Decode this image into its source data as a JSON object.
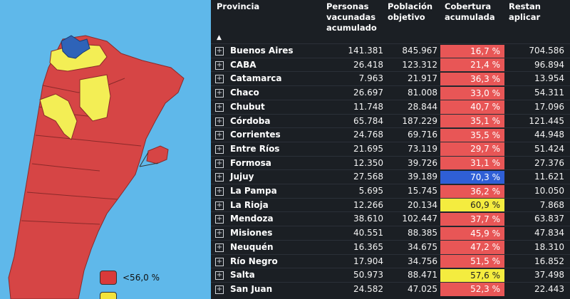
{
  "legend": [
    {
      "label": "<56,0 %",
      "color": "#d93a3a"
    },
    {
      "label": "",
      "color": "#f2e33b"
    }
  ],
  "map": {
    "colors": {
      "low": "#d64545",
      "mid": "#f3ee55",
      "high": "#2e63b8",
      "water": "#5fb8ea"
    }
  },
  "table": {
    "headers": {
      "provincia": "Provincia",
      "personas": [
        "Personas",
        "vacunadas",
        "acumulado"
      ],
      "poblacion": [
        "Población",
        "objetivo"
      ],
      "cobertura": [
        "Cobertura",
        "acumulada"
      ],
      "restan": [
        "Restan",
        "aplicar"
      ]
    },
    "rows": [
      {
        "name": "Buenos Aires",
        "vacunadas": "141.381",
        "objetivo": "845.967",
        "cobertura": "16,7 %",
        "restan": "704.586",
        "color": "#e85656"
      },
      {
        "name": "CABA",
        "vacunadas": "26.418",
        "objetivo": "123.312",
        "cobertura": "21,4 %",
        "restan": "96.894",
        "color": "#e85656"
      },
      {
        "name": "Catamarca",
        "vacunadas": "7.963",
        "objetivo": "21.917",
        "cobertura": "36,3 %",
        "restan": "13.954",
        "color": "#e85656"
      },
      {
        "name": "Chaco",
        "vacunadas": "26.697",
        "objetivo": "81.008",
        "cobertura": "33,0 %",
        "restan": "54.311",
        "color": "#e85656"
      },
      {
        "name": "Chubut",
        "vacunadas": "11.748",
        "objetivo": "28.844",
        "cobertura": "40,7 %",
        "restan": "17.096",
        "color": "#e85656"
      },
      {
        "name": "Córdoba",
        "vacunadas": "65.784",
        "objetivo": "187.229",
        "cobertura": "35,1 %",
        "restan": "121.445",
        "color": "#e85656"
      },
      {
        "name": "Corrientes",
        "vacunadas": "24.768",
        "objetivo": "69.716",
        "cobertura": "35,5 %",
        "restan": "44.948",
        "color": "#e85656"
      },
      {
        "name": "Entre Ríos",
        "vacunadas": "21.695",
        "objetivo": "73.119",
        "cobertura": "29,7 %",
        "restan": "51.424",
        "color": "#e85656"
      },
      {
        "name": "Formosa",
        "vacunadas": "12.350",
        "objetivo": "39.726",
        "cobertura": "31,1 %",
        "restan": "27.376",
        "color": "#e85656"
      },
      {
        "name": "Jujuy",
        "vacunadas": "27.568",
        "objetivo": "39.189",
        "cobertura": "70,3 %",
        "restan": "11.621",
        "color": "#2f5fd6"
      },
      {
        "name": "La Pampa",
        "vacunadas": "5.695",
        "objetivo": "15.745",
        "cobertura": "36,2 %",
        "restan": "10.050",
        "color": "#e85656"
      },
      {
        "name": "La Rioja",
        "vacunadas": "12.266",
        "objetivo": "20.134",
        "cobertura": "60,9 %",
        "restan": "7.868",
        "color": "#f4ec3f"
      },
      {
        "name": "Mendoza",
        "vacunadas": "38.610",
        "objetivo": "102.447",
        "cobertura": "37,7 %",
        "restan": "63.837",
        "color": "#e85656"
      },
      {
        "name": "Misiones",
        "vacunadas": "40.551",
        "objetivo": "88.385",
        "cobertura": "45,9 %",
        "restan": "47.834",
        "color": "#e85656"
      },
      {
        "name": "Neuquén",
        "vacunadas": "16.365",
        "objetivo": "34.675",
        "cobertura": "47,2 %",
        "restan": "18.310",
        "color": "#e85656"
      },
      {
        "name": "Río Negro",
        "vacunadas": "17.904",
        "objetivo": "34.756",
        "cobertura": "51,5 %",
        "restan": "16.852",
        "color": "#e85656"
      },
      {
        "name": "Salta",
        "vacunadas": "50.973",
        "objetivo": "88.471",
        "cobertura": "57,6 %",
        "restan": "37.498",
        "color": "#f4ec3f"
      },
      {
        "name": "San Juan",
        "vacunadas": "24.582",
        "objetivo": "47.025",
        "cobertura": "52,3 %",
        "restan": "22.443",
        "color": "#e85656"
      }
    ]
  }
}
